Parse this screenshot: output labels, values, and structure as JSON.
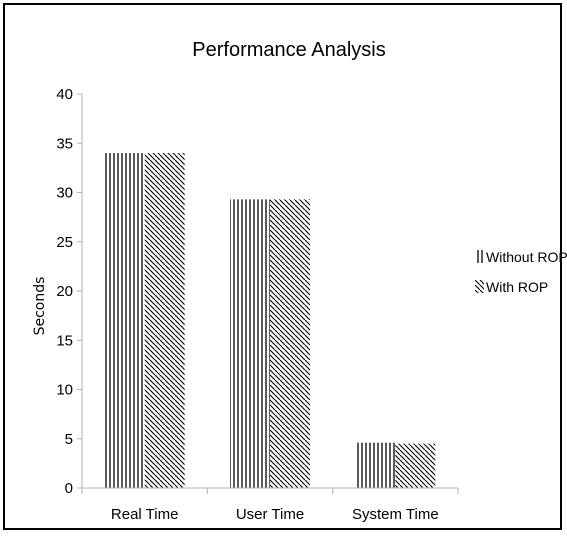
{
  "chart_data": {
    "type": "bar",
    "title": "Performance Analysis",
    "xlabel": "",
    "ylabel": "Seconds",
    "categories": [
      "Real Time",
      "User Time",
      "System Time"
    ],
    "series": [
      {
        "name": "Without ROP",
        "values": [
          34.0,
          29.3,
          4.6
        ],
        "pattern": "vertical-lines"
      },
      {
        "name": "With ROP",
        "values": [
          34.0,
          29.3,
          4.5
        ],
        "pattern": "diagonal-lines"
      }
    ],
    "ylim": [
      0,
      40
    ],
    "yticks": [
      "0",
      "5",
      "10",
      "15",
      "20",
      "25",
      "30",
      "35",
      "40"
    ],
    "grid": false,
    "legend_position": "right",
    "colors": {
      "bar_lines": "#000000",
      "axis": "#b3b3b3",
      "border": "#000000"
    }
  }
}
